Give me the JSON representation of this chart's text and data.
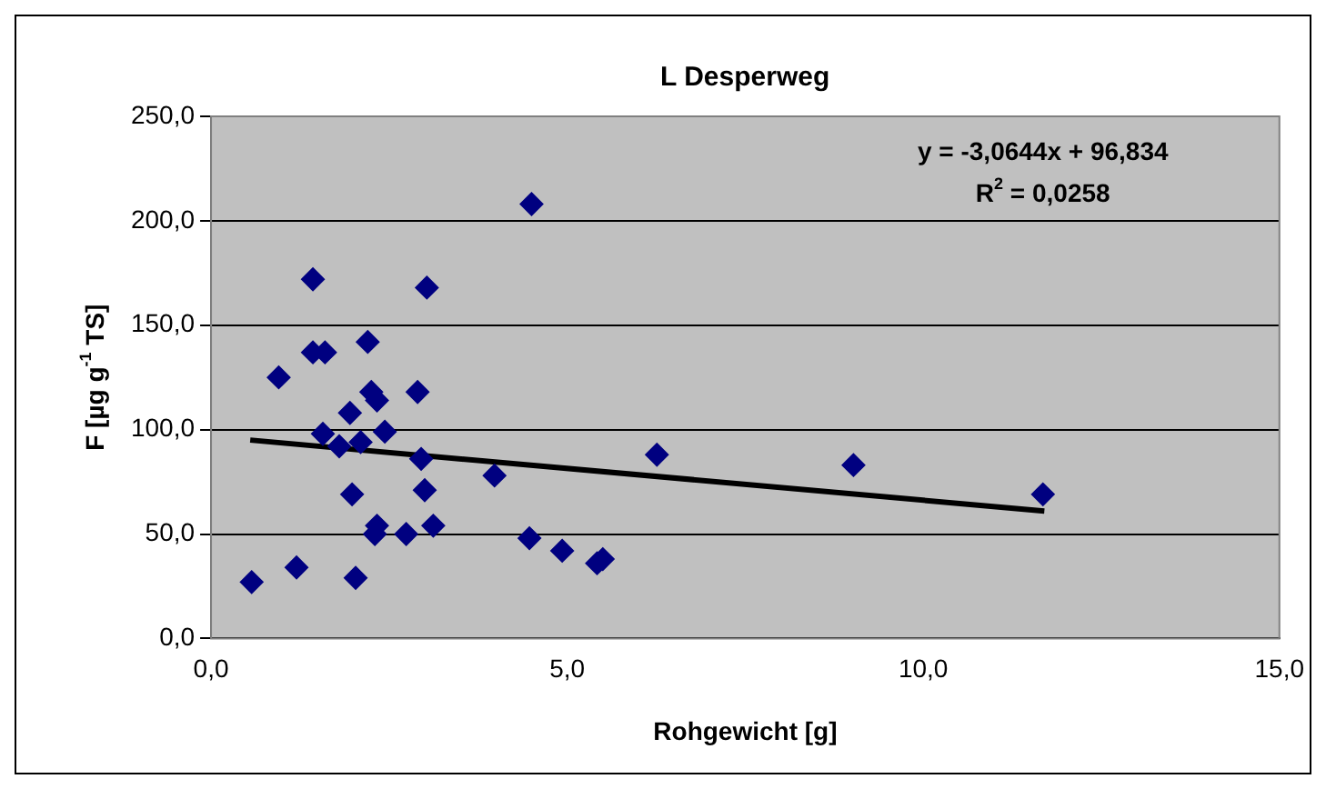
{
  "chart_data": {
    "type": "scatter",
    "title": "L Desperweg",
    "xlabel": "Rohgewicht [g]",
    "ylabel": "F [µg g$^{-1}$ TS]",
    "series": [
      {
        "color": "#000080",
        "marker": "diamond",
        "x": [
          0.57,
          1.2,
          0.95,
          1.43,
          1.43,
          1.6,
          1.57,
          1.8,
          1.95,
          1.98,
          2.03,
          2.2,
          2.25,
          2.33,
          2.1,
          2.3,
          2.33,
          2.44,
          2.74,
          2.9,
          2.95,
          3.03,
          3.0,
          3.12,
          3.98,
          4.5,
          4.47,
          4.93,
          5.42,
          5.5,
          6.26,
          9.02,
          11.68
        ],
        "values": [
          27,
          34,
          125,
          172,
          137,
          137,
          98,
          92,
          108,
          69,
          29,
          142,
          118,
          114,
          94,
          50,
          54,
          99,
          50,
          118,
          86,
          168,
          71,
          54,
          78,
          208,
          48,
          42,
          36,
          38,
          88,
          83,
          69
        ]
      },
      {
        "type": "line",
        "color": "#000000",
        "marker": "none",
        "x": [
          0.55,
          11.7
        ],
        "values": [
          95,
          61
        ]
      }
    ],
    "xlim": [
      0,
      15
    ],
    "xticks": [
      {
        "value": 0,
        "label": "0,0"
      },
      {
        "value": 5,
        "label": "5,0"
      },
      {
        "value": 10,
        "label": "10,0"
      },
      {
        "value": 15,
        "label": "15,0"
      }
    ],
    "ylim": [
      0,
      250
    ],
    "yticks": [
      {
        "value": 0,
        "label": "0,0"
      },
      {
        "value": 50,
        "label": "50,0"
      },
      {
        "value": 100,
        "label": "100,0"
      },
      {
        "value": 150,
        "label": "150,0"
      },
      {
        "value": 200,
        "label": "200,0"
      },
      {
        "value": 250,
        "label": "250,0"
      }
    ],
    "annotations": [
      "y = -3,0644x + 96,834",
      "R$^{2}$ = 0,0258"
    ],
    "grid": "y",
    "legend": false
  }
}
